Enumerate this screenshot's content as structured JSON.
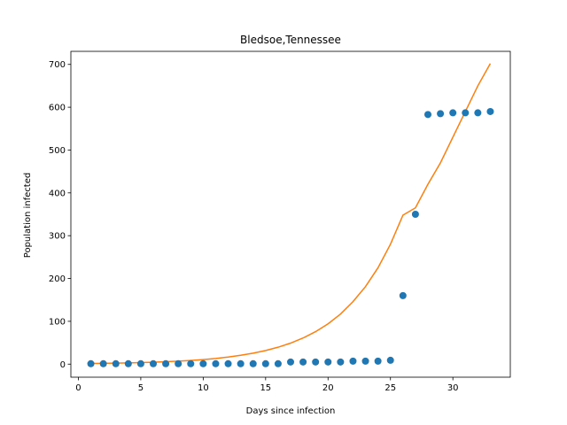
{
  "chart_data": {
    "type": "scatter",
    "title": "Bledsoe,Tennessee",
    "xlabel": "Days since infection",
    "ylabel": "Population infected",
    "xlim": [
      -0.6,
      34.6
    ],
    "ylim": [
      -30.5,
      730.5
    ],
    "xticks": [
      0,
      5,
      10,
      15,
      20,
      25,
      30
    ],
    "yticks": [
      0,
      100,
      200,
      300,
      400,
      500,
      600,
      700
    ],
    "grid": false,
    "legend": "none",
    "series": [
      {
        "kind": "scatter",
        "color": "#1f77b4",
        "x": [
          1,
          2,
          3,
          4,
          5,
          6,
          7,
          8,
          9,
          10,
          11,
          12,
          13,
          14,
          15,
          16,
          17,
          18,
          19,
          20,
          21,
          22,
          23,
          24,
          25,
          26,
          27,
          28,
          29,
          30,
          31,
          32,
          33
        ],
        "y": [
          1,
          1,
          1,
          1,
          1,
          1,
          1,
          1,
          1,
          1,
          1,
          1,
          1,
          1,
          1,
          1,
          5,
          5,
          5,
          5,
          5,
          7,
          7,
          7,
          9,
          160,
          350,
          583,
          585,
          587,
          587,
          587,
          590
        ]
      },
      {
        "kind": "line",
        "color": "#ff7f0e",
        "x": [
          1,
          2,
          3,
          4,
          5,
          6,
          7,
          8,
          9,
          10,
          11,
          12,
          13,
          14,
          15,
          16,
          17,
          18,
          19,
          20,
          21,
          22,
          23,
          24,
          25,
          26,
          27,
          28,
          29,
          30,
          31,
          32,
          33
        ],
        "y": [
          1.5,
          1.9,
          2.3,
          2.9,
          3.6,
          4.5,
          5.6,
          6.9,
          8.6,
          10.7,
          13.3,
          16.6,
          20.6,
          25.6,
          31.8,
          39.5,
          49.1,
          61.0,
          75.8,
          94.2,
          117,
          146,
          181,
          225,
          280,
          348,
          365,
          420,
          470,
          530,
          590,
          650,
          702
        ]
      }
    ]
  }
}
